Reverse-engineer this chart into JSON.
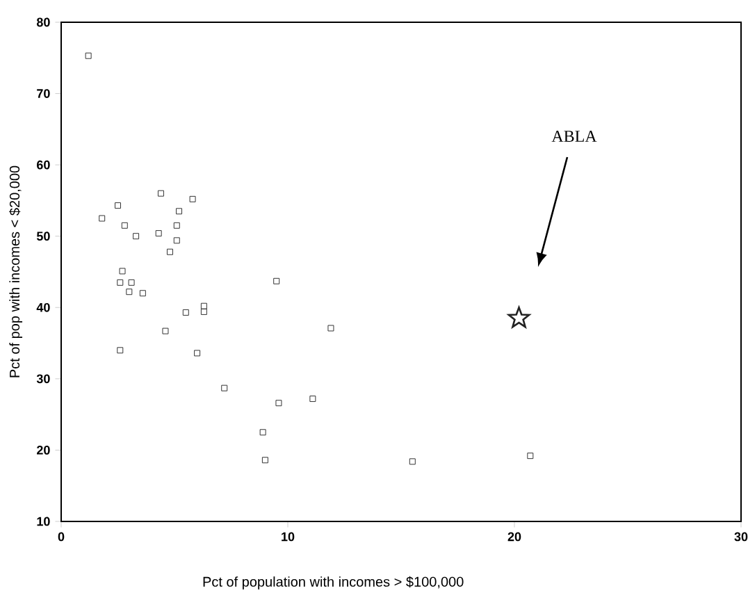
{
  "chart_data": {
    "type": "scatter",
    "xlabel": "Pct of population with incomes > $100,000",
    "ylabel": "Pct of pop with incomes < $20,000",
    "xlim": [
      0,
      30
    ],
    "xticks": [
      0,
      10,
      20,
      30
    ],
    "ylim": [
      10,
      80
    ],
    "yticks": [
      10,
      20,
      30,
      40,
      50,
      60,
      70,
      80
    ],
    "grid": false,
    "series": [
      {
        "color": "#333333",
        "marker": "square",
        "x": [
          1.2,
          1.8,
          2.5,
          2.8,
          3.3,
          4.4,
          5.8,
          5.2,
          5.1,
          5.1,
          4.8,
          4.3,
          2.7,
          2.6,
          3.1,
          3.0,
          3.6,
          9.5,
          6.3,
          6.3,
          5.5,
          4.6,
          11.9,
          2.6,
          6.0,
          7.2,
          9.6,
          11.1,
          8.9,
          9.0,
          15.5,
          20.7
        ],
        "values": [
          75.3,
          52.5,
          54.3,
          51.5,
          50.0,
          56.0,
          55.2,
          53.5,
          51.5,
          49.4,
          47.8,
          50.4,
          45.1,
          43.5,
          43.5,
          42.2,
          42.0,
          43.7,
          40.2,
          39.4,
          39.3,
          36.7,
          37.1,
          34.0,
          33.6,
          28.7,
          26.6,
          27.2,
          22.5,
          18.6,
          18.4,
          19.2
        ]
      },
      {
        "color": "#222222",
        "marker": "star",
        "x": [
          20.2
        ],
        "values": [
          38.5
        ]
      }
    ],
    "annotations": [
      "ABLA"
    ]
  }
}
